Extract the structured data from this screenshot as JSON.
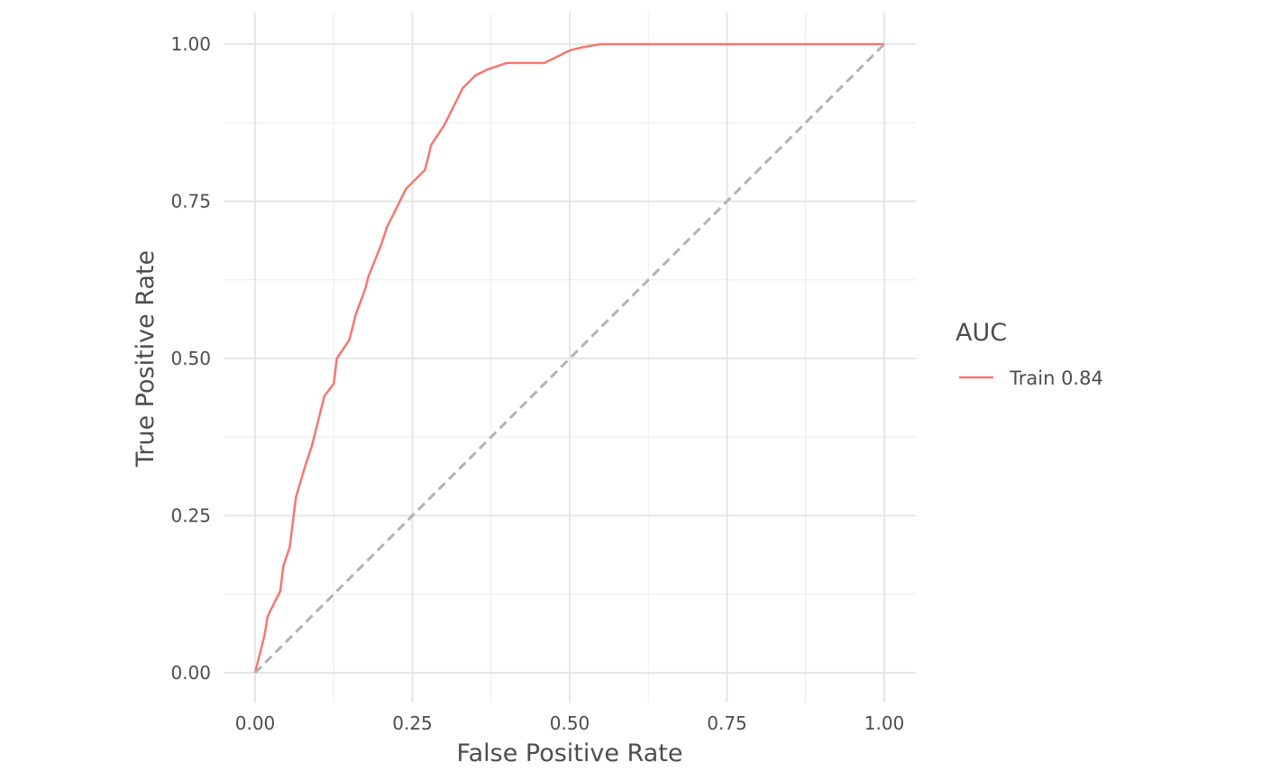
{
  "chart_data": {
    "type": "line",
    "title": "",
    "xlabel": "False Positive Rate",
    "ylabel": "True Positive Rate",
    "xlim": [
      0,
      1
    ],
    "ylim": [
      0,
      1
    ],
    "x_ticks": [
      "0.00",
      "0.25",
      "0.50",
      "0.75",
      "1.00"
    ],
    "y_ticks": [
      "0.00",
      "0.25",
      "0.50",
      "0.75",
      "1.00"
    ],
    "grid": true,
    "legend": {
      "title": "AUC",
      "position": "right"
    },
    "series": [
      {
        "name": "Train 0.84",
        "color": "#f8766d",
        "points": [
          [
            0,
            0
          ],
          [
            0.005,
            0.02
          ],
          [
            0.01,
            0.04
          ],
          [
            0.015,
            0.06
          ],
          [
            0.02,
            0.09
          ],
          [
            0.03,
            0.11
          ],
          [
            0.04,
            0.13
          ],
          [
            0.045,
            0.17
          ],
          [
            0.055,
            0.2
          ],
          [
            0.06,
            0.24
          ],
          [
            0.065,
            0.28
          ],
          [
            0.08,
            0.33
          ],
          [
            0.09,
            0.36
          ],
          [
            0.1,
            0.4
          ],
          [
            0.11,
            0.44
          ],
          [
            0.125,
            0.46
          ],
          [
            0.13,
            0.5
          ],
          [
            0.15,
            0.53
          ],
          [
            0.16,
            0.57
          ],
          [
            0.175,
            0.61
          ],
          [
            0.18,
            0.63
          ],
          [
            0.2,
            0.68
          ],
          [
            0.21,
            0.71
          ],
          [
            0.22,
            0.73
          ],
          [
            0.23,
            0.75
          ],
          [
            0.24,
            0.77
          ],
          [
            0.26,
            0.79
          ],
          [
            0.27,
            0.8
          ],
          [
            0.28,
            0.84
          ],
          [
            0.3,
            0.87
          ],
          [
            0.31,
            0.89
          ],
          [
            0.32,
            0.91
          ],
          [
            0.33,
            0.93
          ],
          [
            0.35,
            0.95
          ],
          [
            0.37,
            0.96
          ],
          [
            0.4,
            0.97
          ],
          [
            0.46,
            0.97
          ],
          [
            0.48,
            0.98
          ],
          [
            0.5,
            0.99
          ],
          [
            0.52,
            0.995
          ],
          [
            0.55,
            1.0
          ],
          [
            1.0,
            1.0
          ]
        ]
      },
      {
        "name": "",
        "color": "#b3b3b3",
        "dashed": true,
        "points": [
          [
            0,
            0
          ],
          [
            1,
            1
          ]
        ]
      }
    ]
  }
}
